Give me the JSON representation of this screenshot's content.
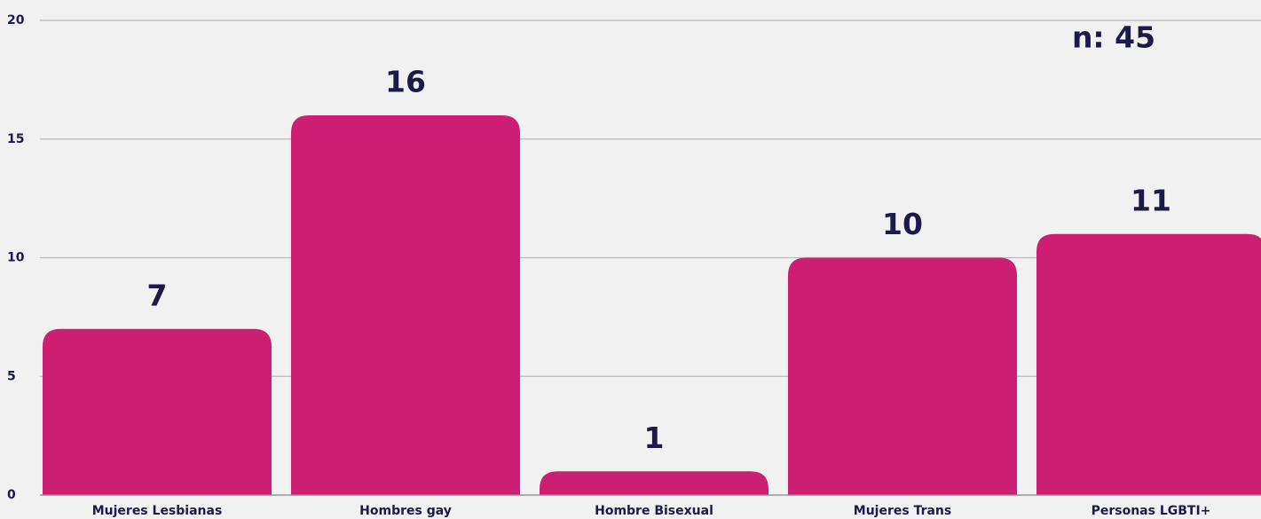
{
  "chart_data": {
    "type": "bar",
    "annotation": "n: 45",
    "categories": [
      "Mujeres Lesbianas",
      "Hombres gay",
      "Hombre Bisexual",
      "Mujeres Trans",
      "Personas LGBTI+"
    ],
    "values": [
      7,
      16,
      1,
      10,
      11
    ],
    "color": "#cc1f73",
    "ylim": [
      0,
      20
    ],
    "yticks": [
      0,
      5,
      10,
      15,
      20
    ],
    "grid": true
  }
}
